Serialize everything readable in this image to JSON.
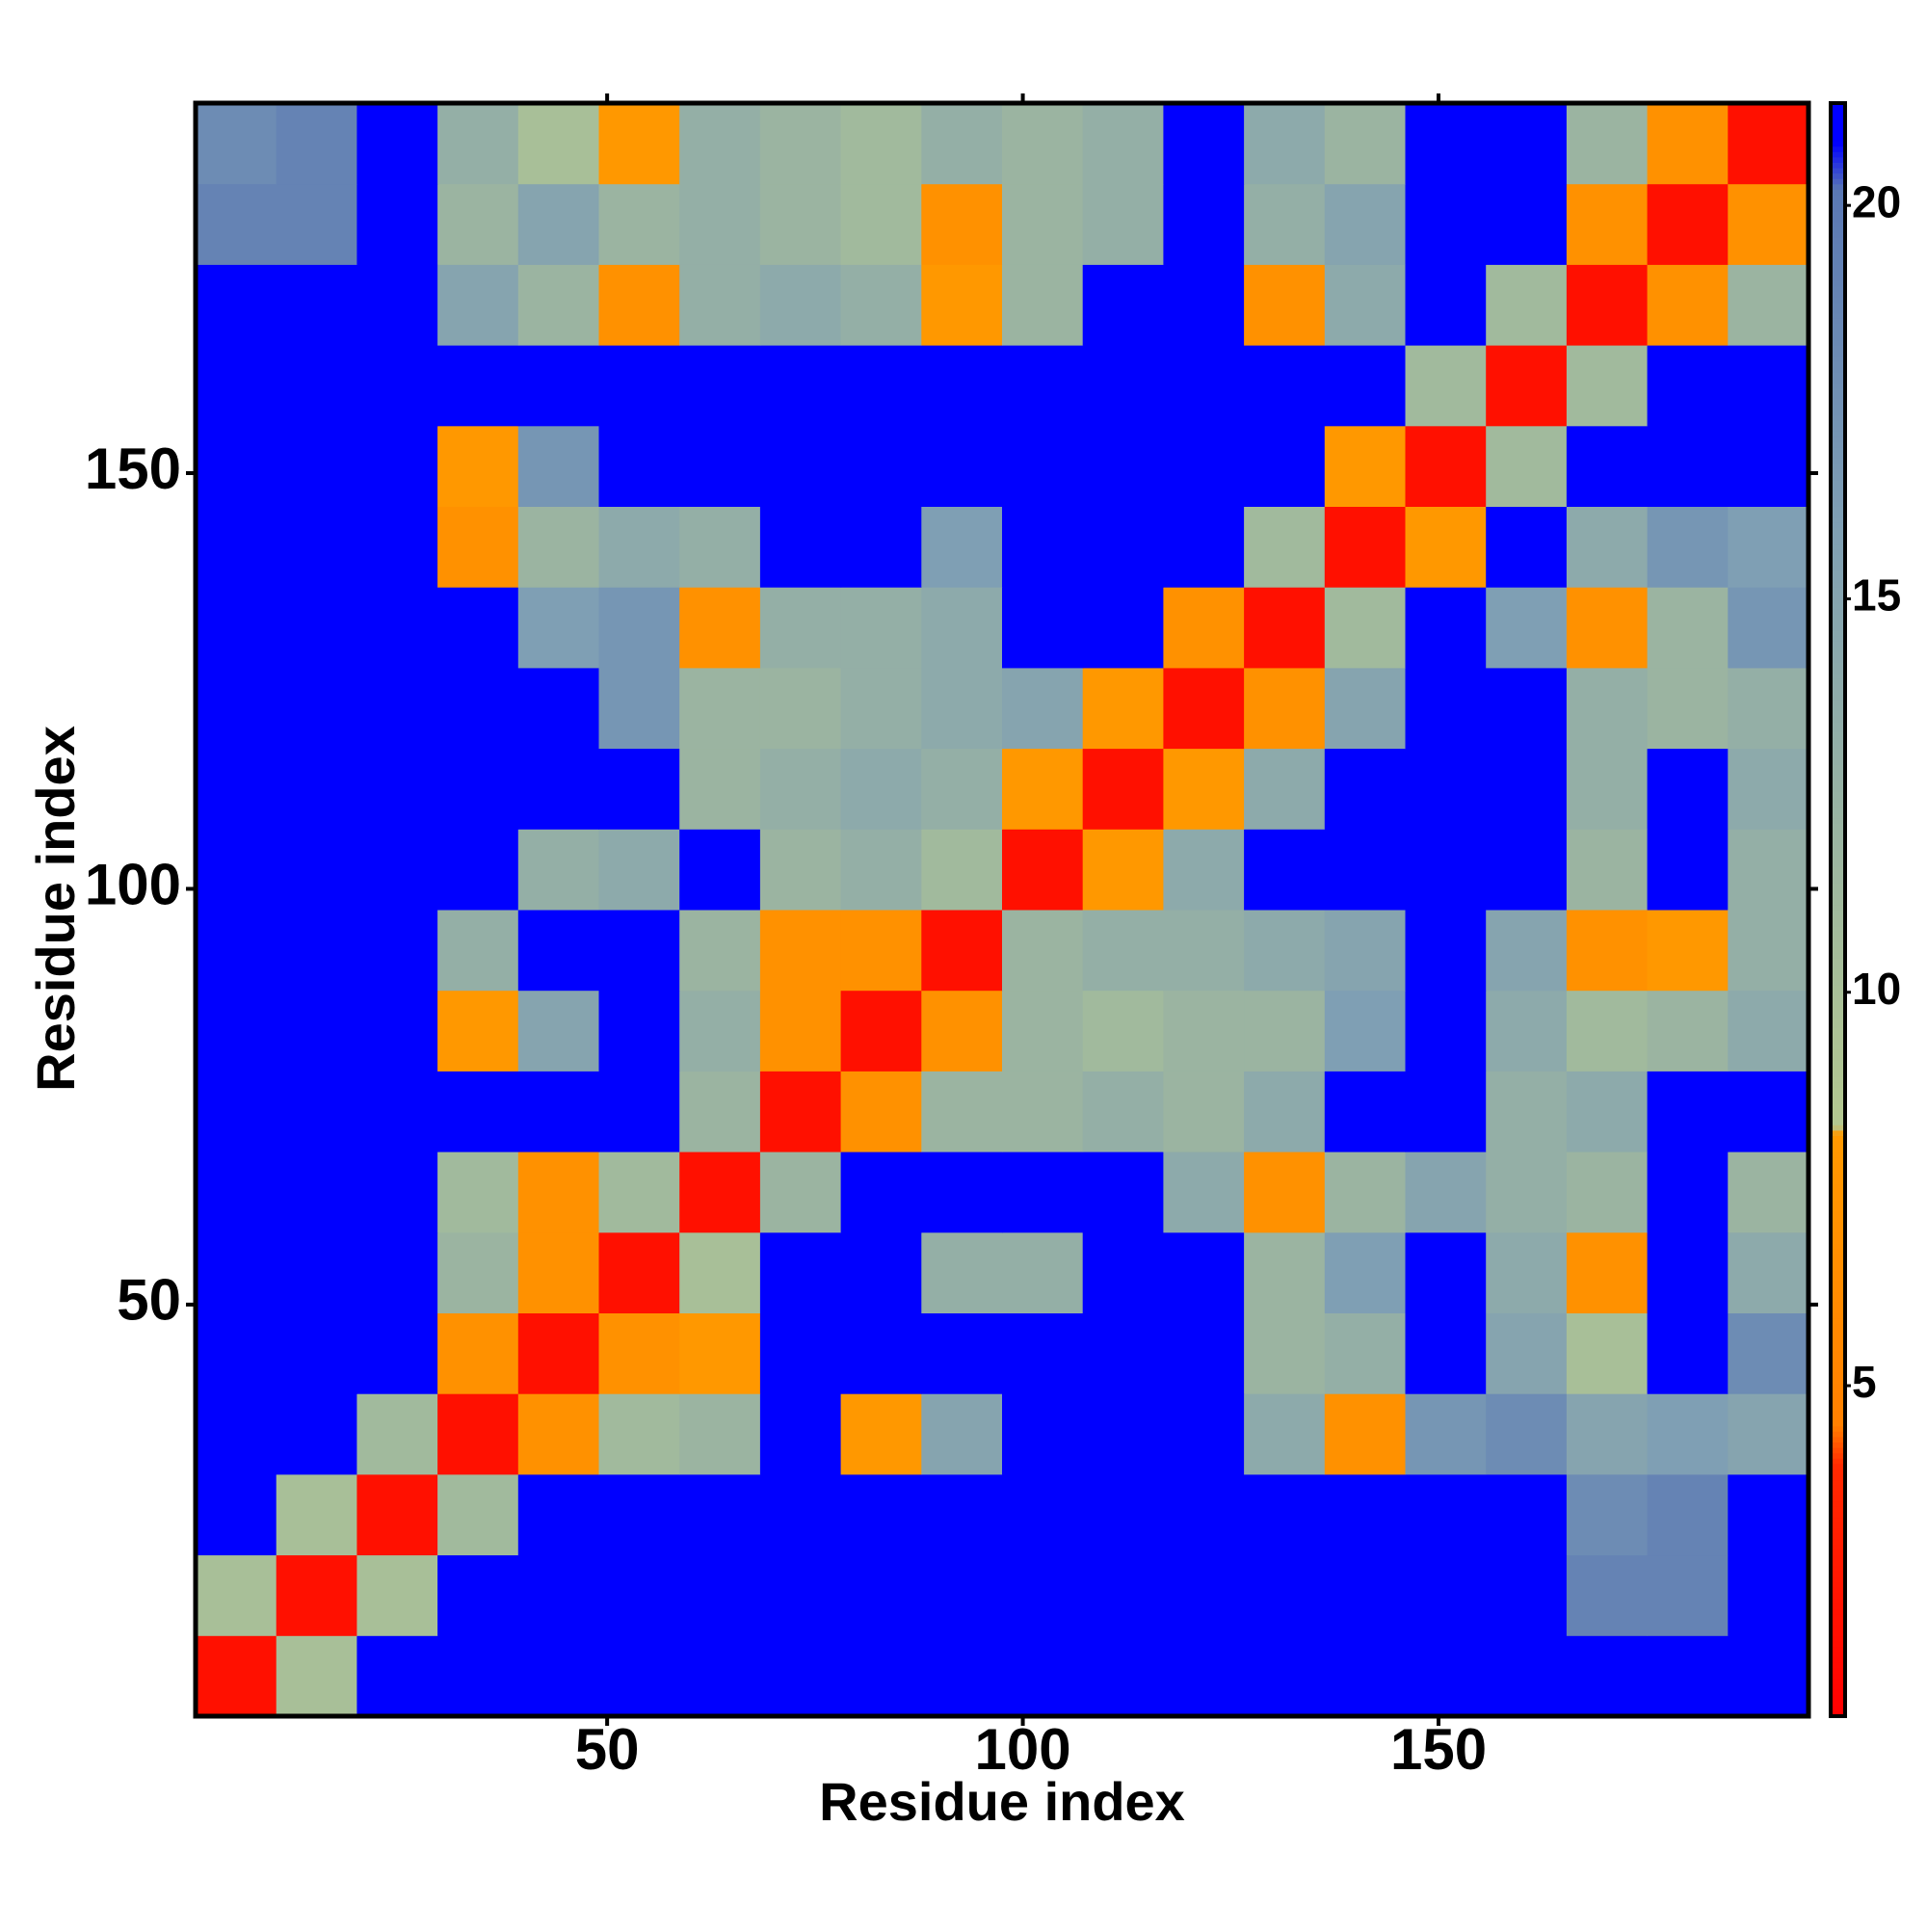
{
  "chart_data": {
    "type": "heatmap",
    "xlabel": "Residue index",
    "ylabel": "Residue index",
    "x": [
      5.35,
      15.05,
      24.75,
      34.45,
      44.15,
      53.85,
      63.55,
      73.25,
      82.95,
      92.65,
      102.35,
      112.05,
      121.75,
      131.45,
      141.15,
      150.85,
      160.55,
      170.25,
      179.95,
      189.65
    ],
    "y": [
      5.35,
      15.05,
      24.75,
      34.45,
      44.15,
      53.85,
      63.55,
      73.25,
      82.95,
      92.65,
      102.35,
      112.05,
      121.75,
      131.45,
      141.15,
      150.85,
      160.55,
      170.25,
      179.95,
      189.65
    ],
    "xlim": [
      0.5,
      194.5
    ],
    "ylim": [
      0.5,
      194.5
    ],
    "xticks": [
      50,
      100,
      150
    ],
    "yticks": [
      50,
      100,
      150
    ],
    "z": [
      [
        2,
        10,
        21,
        21,
        21,
        21,
        21,
        21,
        21,
        21,
        21,
        21,
        21,
        21,
        21,
        21,
        21,
        21,
        21,
        21
      ],
      [
        10,
        2,
        10,
        21,
        21,
        21,
        21,
        21,
        21,
        21,
        21,
        21,
        21,
        21,
        21,
        21,
        21,
        19,
        19,
        21
      ],
      [
        21,
        10,
        2,
        11,
        21,
        21,
        21,
        21,
        21,
        21,
        21,
        21,
        21,
        21,
        21,
        21,
        21,
        18,
        19,
        21
      ],
      [
        21,
        21,
        11,
        2,
        7,
        11,
        12,
        21,
        8,
        15,
        21,
        21,
        21,
        14,
        7,
        17,
        18,
        15,
        16,
        15
      ],
      [
        21,
        21,
        21,
        7,
        2,
        7,
        8,
        21,
        21,
        21,
        21,
        21,
        21,
        12,
        13,
        21,
        15,
        10,
        21,
        18
      ],
      [
        21,
        21,
        21,
        12,
        7,
        2,
        10,
        21,
        21,
        13,
        13,
        21,
        21,
        12,
        16,
        21,
        14,
        7,
        21,
        14
      ],
      [
        21,
        21,
        21,
        11,
        7,
        11,
        2,
        12,
        21,
        21,
        21,
        21,
        14,
        7,
        12,
        15,
        13,
        12,
        21,
        12
      ],
      [
        21,
        21,
        21,
        21,
        21,
        21,
        12,
        2,
        7,
        12,
        12,
        13,
        12,
        14,
        21,
        21,
        13,
        14,
        21,
        21
      ],
      [
        21,
        21,
        21,
        8,
        15,
        21,
        13,
        7,
        2,
        7,
        12,
        11,
        12,
        12,
        16,
        21,
        14,
        11,
        12,
        14
      ],
      [
        21,
        21,
        21,
        13,
        21,
        21,
        12,
        7,
        7,
        2,
        12,
        13,
        13,
        14,
        15,
        21,
        15,
        7,
        8,
        13
      ],
      [
        21,
        21,
        21,
        21,
        13,
        14,
        21,
        12,
        13,
        11,
        2,
        8,
        14,
        21,
        21,
        21,
        21,
        12,
        21,
        13
      ],
      [
        21,
        21,
        21,
        21,
        21,
        21,
        12,
        13,
        14,
        13,
        8,
        2,
        8,
        14,
        21,
        21,
        21,
        13,
        21,
        14
      ],
      [
        21,
        21,
        21,
        21,
        21,
        17,
        12,
        12,
        13,
        14,
        15,
        8,
        2,
        7,
        15,
        21,
        21,
        13,
        12,
        13
      ],
      [
        21,
        21,
        21,
        21,
        16,
        17,
        7,
        13,
        13,
        14,
        21,
        21,
        7,
        2,
        11,
        21,
        16,
        7,
        12,
        17
      ],
      [
        21,
        21,
        21,
        7,
        12,
        14,
        13,
        21,
        21,
        16,
        21,
        21,
        21,
        11,
        2,
        8,
        21,
        14,
        17,
        16
      ],
      [
        21,
        21,
        21,
        8,
        17,
        21,
        21,
        21,
        21,
        21,
        21,
        21,
        21,
        21,
        8,
        2,
        11,
        21,
        21,
        21
      ],
      [
        21,
        21,
        21,
        21,
        21,
        21,
        21,
        21,
        21,
        21,
        21,
        21,
        21,
        21,
        21,
        11,
        2,
        11,
        21,
        21
      ],
      [
        21,
        21,
        21,
        15,
        12,
        7,
        13,
        14,
        13,
        8,
        12,
        21,
        21,
        7,
        14,
        21,
        11,
        2,
        7,
        12
      ],
      [
        19,
        19,
        21,
        12,
        15,
        12,
        13,
        12,
        11,
        7,
        12,
        13,
        21,
        13,
        15,
        21,
        21,
        7,
        2,
        7
      ],
      [
        18,
        19,
        21,
        13,
        10,
        8,
        13,
        12,
        11,
        13,
        12,
        13,
        21,
        14,
        12,
        21,
        21,
        12,
        7,
        2
      ]
    ],
    "colorbar": {
      "lim": [
        0.8,
        21.3
      ],
      "ticks": [
        5,
        10,
        15,
        20
      ]
    },
    "colorscale": [
      [
        0.8,
        "#ff0000"
      ],
      [
        4,
        "#ff2a00"
      ],
      [
        4.5,
        "#ff8000"
      ],
      [
        8.2,
        "#ff9900"
      ],
      [
        8.3,
        "#b4c890"
      ],
      [
        16,
        "#7f9fb4"
      ],
      [
        20.2,
        "#5a78b4"
      ],
      [
        20.8,
        "#0000ff"
      ]
    ]
  }
}
